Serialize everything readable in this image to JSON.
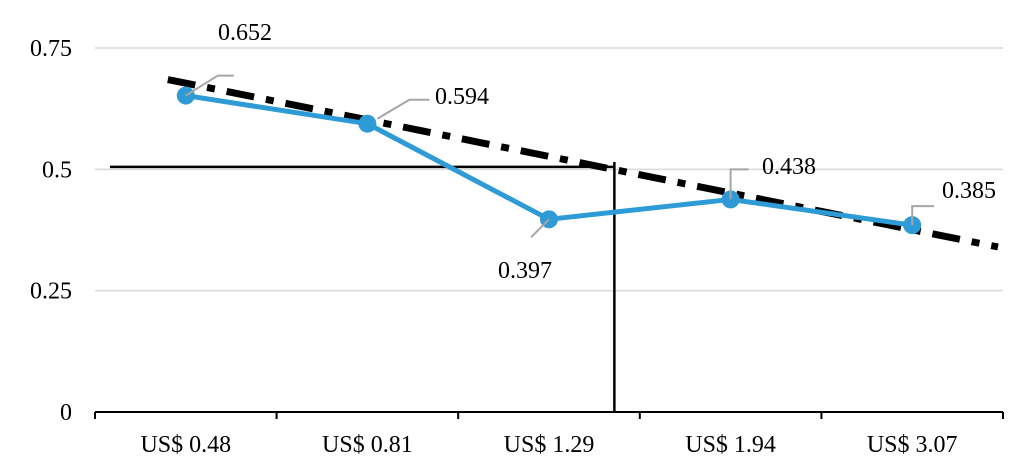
{
  "chart_data": {
    "type": "line",
    "categories": [
      "US$ 0.48",
      "US$ 0.81",
      "US$ 1.29",
      "US$ 1.94",
      "US$ 3.07"
    ],
    "series": [
      {
        "values": [
          0.652,
          0.594,
          0.397,
          0.438,
          0.385
        ],
        "color": "#2e9bd6"
      }
    ],
    "data_labels": [
      "0.652",
      "0.594",
      "0.397",
      "0.438",
      "0.385"
    ],
    "trendline": {
      "style": "dash-dot",
      "color": "#000000",
      "y_start": 0.685,
      "y_end": 0.34
    },
    "reference_lines": {
      "horizontal_y": 0.505,
      "vertical_between_categories": [
        2,
        3
      ]
    },
    "y_ticks": [
      "0",
      "0.25",
      "0.5",
      "0.75"
    ],
    "y_tick_values": [
      0,
      0.25,
      0.5,
      0.75
    ],
    "ylim": [
      0,
      0.75
    ],
    "title": "",
    "xlabel": "",
    "ylabel": "",
    "grid": true,
    "legend": "none"
  }
}
